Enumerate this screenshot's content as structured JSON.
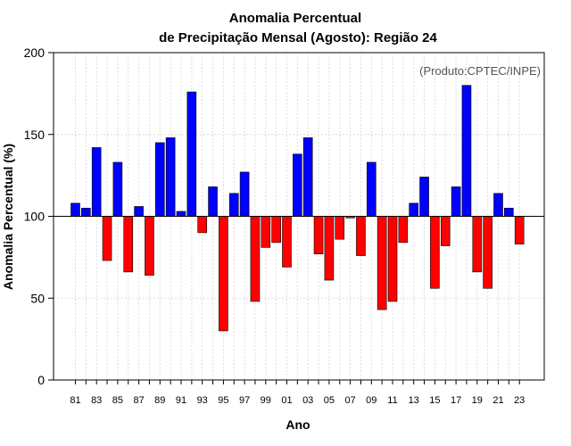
{
  "chart_data": {
    "type": "bar",
    "title": "Anomalia Percentual",
    "subtitle": "de Precipitação Mensal (Agosto): Região 24",
    "xlabel": "Ano",
    "ylabel": "Anomalia Percentual (%)",
    "source_note": "(Produto:CPTEC/INPE)",
    "baseline": 100,
    "ylim": [
      0,
      200
    ],
    "yticks": [
      0,
      50,
      100,
      150,
      200
    ],
    "grid": true,
    "colors": {
      "above": "#0000ff",
      "below": "#ff0000",
      "border": "#000000",
      "grid": "#dddddd"
    },
    "categories": [
      "81",
      "82",
      "83",
      "84",
      "85",
      "86",
      "87",
      "88",
      "89",
      "90",
      "91",
      "92",
      "93",
      "94",
      "95",
      "96",
      "97",
      "98",
      "99",
      "00",
      "01",
      "02",
      "03",
      "04",
      "05",
      "06",
      "07",
      "08",
      "09",
      "10",
      "11",
      "12",
      "13",
      "14",
      "15",
      "16",
      "17",
      "18",
      "19",
      "20",
      "21",
      "22",
      "23"
    ],
    "tick_labels": [
      "81",
      "83",
      "85",
      "87",
      "89",
      "91",
      "93",
      "95",
      "97",
      "99",
      "01",
      "03",
      "05",
      "07",
      "09",
      "11",
      "13",
      "15",
      "17",
      "19",
      "21",
      "23"
    ],
    "values": [
      108,
      105,
      142,
      73,
      133,
      66,
      106,
      64,
      145,
      148,
      103,
      176,
      90,
      118,
      30,
      114,
      127,
      48,
      81,
      84,
      69,
      138,
      148,
      77,
      61,
      86,
      99,
      76,
      133,
      43,
      48,
      84,
      108,
      124,
      56,
      82,
      118,
      180,
      66,
      56,
      114,
      105,
      83
    ]
  }
}
